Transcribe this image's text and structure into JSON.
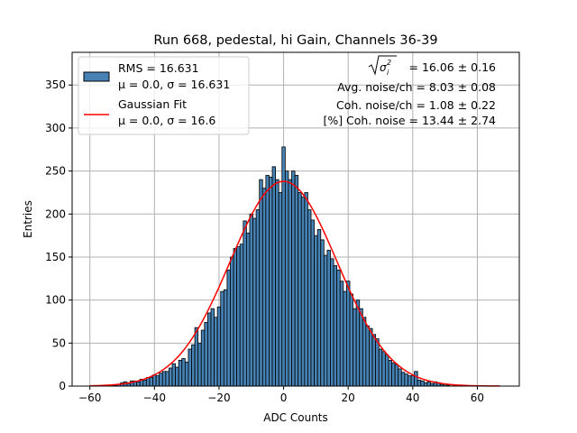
{
  "chart_data": {
    "type": "bar",
    "title": "Run 668, pedestal, hi Gain, Channels 36-39",
    "xlabel": "ADC Counts",
    "ylabel": "Entries",
    "xlim": [
      -65.5,
      73
    ],
    "ylim": [
      0,
      388
    ],
    "xticks": [
      -60,
      -40,
      -20,
      0,
      20,
      40,
      60
    ],
    "yticks": [
      0,
      50,
      100,
      150,
      200,
      250,
      300,
      350
    ],
    "grid": true,
    "bin_width": 1,
    "bars": [
      {
        "x": -60,
        "y": 0
      },
      {
        "x": -59,
        "y": 0
      },
      {
        "x": -58,
        "y": 0
      },
      {
        "x": -57,
        "y": 0
      },
      {
        "x": -56,
        "y": 0
      },
      {
        "x": -55,
        "y": 1
      },
      {
        "x": -54,
        "y": 0
      },
      {
        "x": -53,
        "y": 1
      },
      {
        "x": -52,
        "y": 1
      },
      {
        "x": -51,
        "y": 2
      },
      {
        "x": -50,
        "y": 4
      },
      {
        "x": -49,
        "y": 5
      },
      {
        "x": -48,
        "y": 3
      },
      {
        "x": -47,
        "y": 6
      },
      {
        "x": -46,
        "y": 6
      },
      {
        "x": -45,
        "y": 5
      },
      {
        "x": -44,
        "y": 8
      },
      {
        "x": -43,
        "y": 7
      },
      {
        "x": -42,
        "y": 10
      },
      {
        "x": -41,
        "y": 10
      },
      {
        "x": -40,
        "y": 13
      },
      {
        "x": -39,
        "y": 12
      },
      {
        "x": -38,
        "y": 15
      },
      {
        "x": -37,
        "y": 17
      },
      {
        "x": -36,
        "y": 17
      },
      {
        "x": -35,
        "y": 21
      },
      {
        "x": -34,
        "y": 26
      },
      {
        "x": -33,
        "y": 22
      },
      {
        "x": -32,
        "y": 30
      },
      {
        "x": -31,
        "y": 32
      },
      {
        "x": -30,
        "y": 28
      },
      {
        "x": -29,
        "y": 43
      },
      {
        "x": -28,
        "y": 48
      },
      {
        "x": -27,
        "y": 68
      },
      {
        "x": -26,
        "y": 50
      },
      {
        "x": -25,
        "y": 65
      },
      {
        "x": -24,
        "y": 74
      },
      {
        "x": -23,
        "y": 85
      },
      {
        "x": -22,
        "y": 90
      },
      {
        "x": -21,
        "y": 80
      },
      {
        "x": -20,
        "y": 92
      },
      {
        "x": -19,
        "y": 110
      },
      {
        "x": -18,
        "y": 112
      },
      {
        "x": -17,
        "y": 135
      },
      {
        "x": -16,
        "y": 150
      },
      {
        "x": -15,
        "y": 160
      },
      {
        "x": -14,
        "y": 162
      },
      {
        "x": -13,
        "y": 165
      },
      {
        "x": -12,
        "y": 192
      },
      {
        "x": -11,
        "y": 178
      },
      {
        "x": -10,
        "y": 200
      },
      {
        "x": -9,
        "y": 195
      },
      {
        "x": -8,
        "y": 205
      },
      {
        "x": -7,
        "y": 240
      },
      {
        "x": -6,
        "y": 230
      },
      {
        "x": -5,
        "y": 245
      },
      {
        "x": -4,
        "y": 243
      },
      {
        "x": -3,
        "y": 255
      },
      {
        "x": -2,
        "y": 240
      },
      {
        "x": -1,
        "y": 225
      },
      {
        "x": 0,
        "y": 278
      },
      {
        "x": 1,
        "y": 250
      },
      {
        "x": 2,
        "y": 240
      },
      {
        "x": 3,
        "y": 250
      },
      {
        "x": 4,
        "y": 245
      },
      {
        "x": 5,
        "y": 225
      },
      {
        "x": 6,
        "y": 220
      },
      {
        "x": 7,
        "y": 225
      },
      {
        "x": 8,
        "y": 205
      },
      {
        "x": 9,
        "y": 193
      },
      {
        "x": 10,
        "y": 175
      },
      {
        "x": 11,
        "y": 182
      },
      {
        "x": 12,
        "y": 170
      },
      {
        "x": 13,
        "y": 152
      },
      {
        "x": 14,
        "y": 158
      },
      {
        "x": 15,
        "y": 148
      },
      {
        "x": 16,
        "y": 140
      },
      {
        "x": 17,
        "y": 135
      },
      {
        "x": 18,
        "y": 122
      },
      {
        "x": 19,
        "y": 110
      },
      {
        "x": 20,
        "y": 122
      },
      {
        "x": 21,
        "y": 107
      },
      {
        "x": 22,
        "y": 90
      },
      {
        "x": 23,
        "y": 100
      },
      {
        "x": 24,
        "y": 90
      },
      {
        "x": 25,
        "y": 80
      },
      {
        "x": 26,
        "y": 70
      },
      {
        "x": 27,
        "y": 67
      },
      {
        "x": 28,
        "y": 60
      },
      {
        "x": 29,
        "y": 55
      },
      {
        "x": 30,
        "y": 43
      },
      {
        "x": 31,
        "y": 40
      },
      {
        "x": 32,
        "y": 36
      },
      {
        "x": 33,
        "y": 30
      },
      {
        "x": 34,
        "y": 27
      },
      {
        "x": 35,
        "y": 25
      },
      {
        "x": 36,
        "y": 20
      },
      {
        "x": 37,
        "y": 16
      },
      {
        "x": 38,
        "y": 14
      },
      {
        "x": 39,
        "y": 12
      },
      {
        "x": 40,
        "y": 12
      },
      {
        "x": 41,
        "y": 17
      },
      {
        "x": 42,
        "y": 7
      },
      {
        "x": 43,
        "y": 6
      },
      {
        "x": 44,
        "y": 4
      },
      {
        "x": 45,
        "y": 5
      },
      {
        "x": 46,
        "y": 3
      },
      {
        "x": 47,
        "y": 5
      },
      {
        "x": 48,
        "y": 4
      },
      {
        "x": 49,
        "y": 2
      },
      {
        "x": 50,
        "y": 2
      },
      {
        "x": 51,
        "y": 1
      },
      {
        "x": 52,
        "y": 0
      },
      {
        "x": 53,
        "y": 1
      },
      {
        "x": 54,
        "y": 0
      },
      {
        "x": 55,
        "y": 0
      },
      {
        "x": 56,
        "y": 1
      },
      {
        "x": 57,
        "y": 0
      },
      {
        "x": 58,
        "y": 0
      },
      {
        "x": 59,
        "y": 0
      },
      {
        "x": 60,
        "y": 0
      },
      {
        "x": 61,
        "y": 0
      },
      {
        "x": 62,
        "y": 0
      },
      {
        "x": 63,
        "y": 0
      },
      {
        "x": 64,
        "y": 0
      },
      {
        "x": 65,
        "y": 0
      },
      {
        "x": 66,
        "y": 0
      },
      {
        "x": 67,
        "y": 0
      }
    ],
    "fit": {
      "type": "gaussian",
      "mu": 0.0,
      "sigma": 16.6,
      "amplitude": 238,
      "x_range": [
        -60,
        67
      ]
    },
    "legend": {
      "position": "top-left",
      "entries": [
        {
          "kind": "patch",
          "line1": "RMS = 16.631",
          "line2": "μ = 0.0, σ = 16.631"
        },
        {
          "kind": "line",
          "line1": "Gaussian Fit",
          "line2": "μ = 0.0, σ = 16.6"
        }
      ]
    },
    "annotations": {
      "sigma_value": "= 16.06 ± 0.16",
      "avg_noise": "Avg. noise/ch = 8.03 ± 0.08",
      "coh_noise": "Coh. noise/ch = 1.08 ± 0.22",
      "coh_noise_pct": "[%] Coh. noise = 13.44 ± 2.74"
    },
    "colors": {
      "bar_fill": "#4682b4",
      "bar_edge": "#000000",
      "fit_line": "#ff0000",
      "grid": "#b0b0b0"
    }
  }
}
